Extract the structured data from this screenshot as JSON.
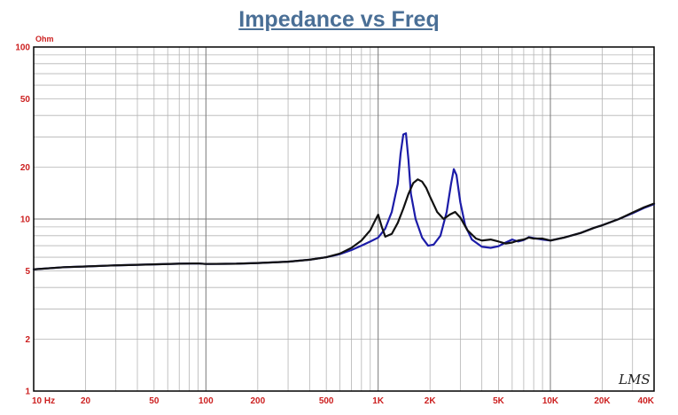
{
  "title": "Impedance vs Freq",
  "watermark": "LMS",
  "chart_data": {
    "type": "line",
    "title": "Impedance vs Freq",
    "ylabel": "Ohm",
    "xlabel": "",
    "xscale": "log",
    "yscale": "log",
    "xlim": [
      10,
      40000
    ],
    "ylim": [
      1,
      100
    ],
    "grid": true,
    "x_ticks": [
      {
        "value": 10,
        "label": "10  Hz"
      },
      {
        "value": 20,
        "label": "20"
      },
      {
        "value": 50,
        "label": "50"
      },
      {
        "value": 100,
        "label": "100"
      },
      {
        "value": 200,
        "label": "200"
      },
      {
        "value": 500,
        "label": "500"
      },
      {
        "value": 1000,
        "label": "1K"
      },
      {
        "value": 2000,
        "label": "2K"
      },
      {
        "value": 5000,
        "label": "5K"
      },
      {
        "value": 10000,
        "label": "10K"
      },
      {
        "value": 20000,
        "label": "20K"
      },
      {
        "value": 40000,
        "label": "40K"
      }
    ],
    "y_ticks": [
      {
        "value": 100,
        "label": "100"
      },
      {
        "value": 50,
        "label": "50"
      },
      {
        "value": 20,
        "label": "20"
      },
      {
        "value": 10,
        "label": "10"
      },
      {
        "value": 5,
        "label": "5"
      },
      {
        "value": 2,
        "label": "2"
      },
      {
        "value": 1,
        "label": "1"
      }
    ],
    "series": [
      {
        "color": "#1c1ca8",
        "points": [
          [
            10,
            5.1
          ],
          [
            15,
            5.25
          ],
          [
            20,
            5.3
          ],
          [
            30,
            5.38
          ],
          [
            50,
            5.45
          ],
          [
            70,
            5.5
          ],
          [
            90,
            5.52
          ],
          [
            100,
            5.48
          ],
          [
            150,
            5.5
          ],
          [
            200,
            5.55
          ],
          [
            300,
            5.65
          ],
          [
            400,
            5.8
          ],
          [
            500,
            6.0
          ],
          [
            600,
            6.25
          ],
          [
            700,
            6.6
          ],
          [
            800,
            7.0
          ],
          [
            900,
            7.4
          ],
          [
            1000,
            7.8
          ],
          [
            1100,
            8.8
          ],
          [
            1200,
            11.0
          ],
          [
            1300,
            16.0
          ],
          [
            1350,
            24.0
          ],
          [
            1400,
            31.0
          ],
          [
            1450,
            31.5
          ],
          [
            1500,
            22.0
          ],
          [
            1550,
            14.0
          ],
          [
            1650,
            10.0
          ],
          [
            1800,
            7.8
          ],
          [
            1950,
            7.0
          ],
          [
            2100,
            7.1
          ],
          [
            2300,
            8.0
          ],
          [
            2500,
            11.0
          ],
          [
            2650,
            16.0
          ],
          [
            2750,
            19.5
          ],
          [
            2850,
            18.0
          ],
          [
            3000,
            12.5
          ],
          [
            3200,
            9.2
          ],
          [
            3500,
            7.6
          ],
          [
            4000,
            6.9
          ],
          [
            4500,
            6.8
          ],
          [
            5000,
            6.95
          ],
          [
            5500,
            7.3
          ],
          [
            6000,
            7.6
          ],
          [
            6500,
            7.4
          ],
          [
            7000,
            7.55
          ],
          [
            7500,
            7.85
          ],
          [
            8000,
            7.75
          ],
          [
            9000,
            7.6
          ],
          [
            10000,
            7.5
          ],
          [
            12000,
            7.8
          ],
          [
            15000,
            8.3
          ],
          [
            18000,
            8.9
          ],
          [
            20000,
            9.2
          ],
          [
            25000,
            10.0
          ],
          [
            30000,
            10.8
          ],
          [
            35000,
            11.6
          ],
          [
            40000,
            12.2
          ]
        ]
      },
      {
        "color": "#111111",
        "points": [
          [
            10,
            5.1
          ],
          [
            15,
            5.25
          ],
          [
            20,
            5.3
          ],
          [
            30,
            5.38
          ],
          [
            50,
            5.45
          ],
          [
            70,
            5.5
          ],
          [
            90,
            5.52
          ],
          [
            100,
            5.48
          ],
          [
            150,
            5.5
          ],
          [
            200,
            5.55
          ],
          [
            300,
            5.65
          ],
          [
            400,
            5.8
          ],
          [
            500,
            6.0
          ],
          [
            600,
            6.3
          ],
          [
            700,
            6.8
          ],
          [
            800,
            7.5
          ],
          [
            900,
            8.6
          ],
          [
            950,
            9.6
          ],
          [
            1000,
            10.6
          ],
          [
            1050,
            9.0
          ],
          [
            1100,
            7.9
          ],
          [
            1200,
            8.2
          ],
          [
            1300,
            9.5
          ],
          [
            1400,
            11.5
          ],
          [
            1500,
            14.0
          ],
          [
            1600,
            16.2
          ],
          [
            1700,
            17.0
          ],
          [
            1800,
            16.5
          ],
          [
            1900,
            15.2
          ],
          [
            2000,
            13.5
          ],
          [
            2200,
            11.0
          ],
          [
            2400,
            10.0
          ],
          [
            2600,
            10.6
          ],
          [
            2800,
            11.0
          ],
          [
            3000,
            10.2
          ],
          [
            3300,
            8.6
          ],
          [
            3700,
            7.7
          ],
          [
            4000,
            7.5
          ],
          [
            4500,
            7.6
          ],
          [
            5000,
            7.4
          ],
          [
            5500,
            7.2
          ],
          [
            6000,
            7.3
          ],
          [
            6500,
            7.5
          ],
          [
            7000,
            7.6
          ],
          [
            7500,
            7.8
          ],
          [
            8000,
            7.7
          ],
          [
            9000,
            7.7
          ],
          [
            10000,
            7.5
          ],
          [
            12000,
            7.8
          ],
          [
            15000,
            8.3
          ],
          [
            18000,
            8.9
          ],
          [
            20000,
            9.2
          ],
          [
            25000,
            10.0
          ],
          [
            30000,
            10.9
          ],
          [
            35000,
            11.7
          ],
          [
            40000,
            12.3
          ]
        ]
      }
    ]
  }
}
